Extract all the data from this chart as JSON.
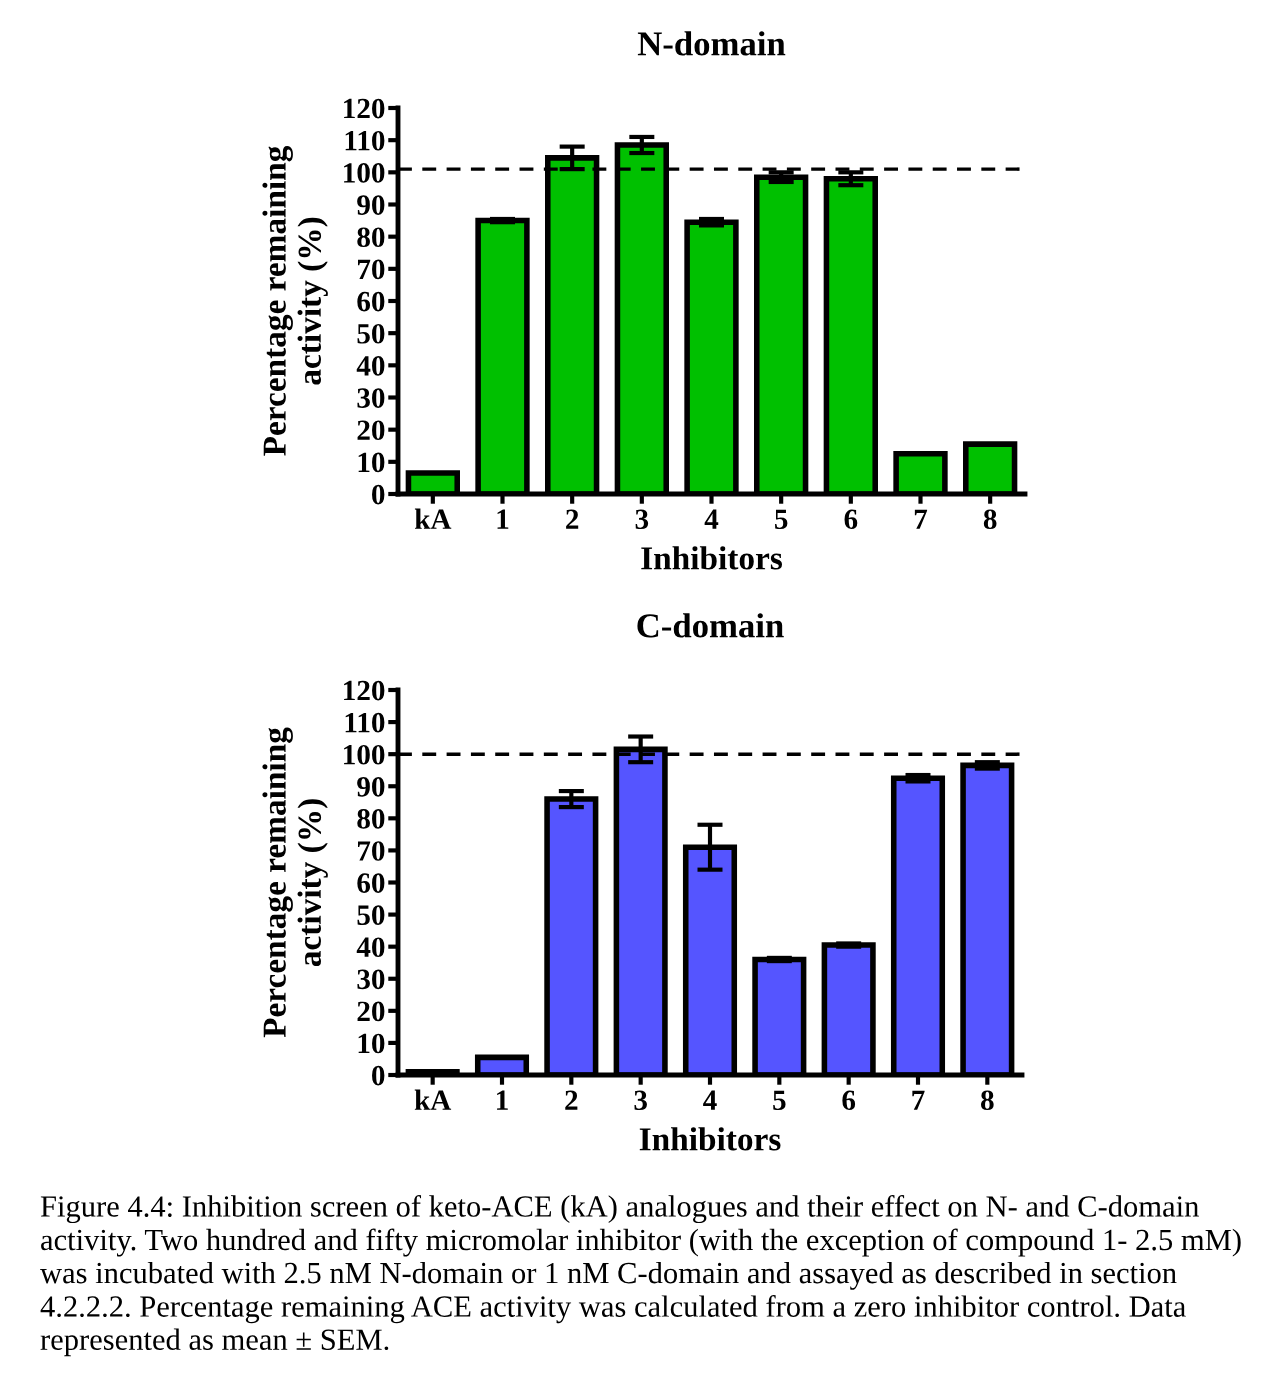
{
  "chart_data": [
    {
      "type": "bar",
      "title": "N-domain",
      "xlabel": "Inhibitors",
      "ylabel": "Percentage remaining\nactivity (%)",
      "categories": [
        "kA",
        "1",
        "2",
        "3",
        "4",
        "5",
        "6",
        "7",
        "8"
      ],
      "values": [
        6.5,
        85,
        104.5,
        108.5,
        84.5,
        98.5,
        98,
        12.5,
        15.5
      ],
      "errors": [
        null,
        0.5,
        3.5,
        2.5,
        1,
        1.5,
        2,
        null,
        null
      ],
      "color": "#00c000",
      "ylim": [
        0,
        120
      ],
      "yticks": [
        0,
        10,
        20,
        30,
        40,
        50,
        60,
        70,
        80,
        90,
        100,
        110,
        120
      ],
      "ref_lines": [
        {
          "axis": "y",
          "value": 101,
          "line_style": "dashed",
          "color": "#000000"
        }
      ],
      "grid": false,
      "legend": false
    },
    {
      "type": "bar",
      "title": "C-domain",
      "xlabel": "Inhibitors",
      "ylabel": "Percentage remaining\nactivity (%)",
      "categories": [
        "kA",
        "1",
        "2",
        "3",
        "4",
        "5",
        "6",
        "7",
        "8"
      ],
      "values": [
        1,
        5.5,
        86,
        101.5,
        71,
        36,
        40.5,
        92.5,
        96.5
      ],
      "errors": [
        null,
        null,
        2.5,
        4,
        7,
        0.5,
        0.5,
        1,
        1
      ],
      "color": "#5555ff",
      "ylim": [
        0,
        120
      ],
      "yticks": [
        0,
        10,
        20,
        30,
        40,
        50,
        60,
        70,
        80,
        90,
        100,
        110,
        120
      ],
      "ref_lines": [
        {
          "axis": "y",
          "value": 100,
          "line_style": "dashed",
          "color": "#000000"
        }
      ],
      "grid": false,
      "legend": false,
      "annotations": [
        "Figure 4.4: Inhibition screen of keto-ACE (kA) analogues and their effect on N- and C-domain activity. Two hundred and fifty micromolar inhibitor (with the exception of compound 1- 2.5 mM) was incubated with 2.5 nM N-domain or 1 nM C-domain and assayed as described in section 4.2.2.2. Percentage remaining ACE activity was calculated from a zero inhibitor control. Data represented as mean ± SEM."
      ]
    }
  ]
}
